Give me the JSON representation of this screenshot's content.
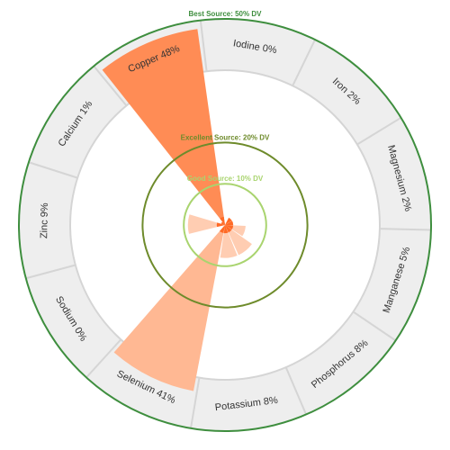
{
  "chart_data": {
    "type": "radial-bar",
    "categories": [
      "Calcium",
      "Copper",
      "Iodine",
      "Iron",
      "Magnesium",
      "Manganese",
      "Phosphorus",
      "Potassium",
      "Selenium",
      "Sodium",
      "Zinc"
    ],
    "values": [
      1,
      48,
      0,
      2,
      2,
      5,
      8,
      8,
      41,
      0,
      9
    ],
    "labels": [
      "Calcium 1%",
      "Copper 48%",
      "Iodine 0%",
      "Iron 2%",
      "Magnesium 2%",
      "Manganese 5%",
      "Phosphorus 8%",
      "Potassium 8%",
      "Selenium 41%",
      "Sodium 0%",
      "Zinc 9%"
    ],
    "unit": "% DV",
    "scale_max": 50,
    "thresholds": [
      {
        "label": "Good Source: 10% DV",
        "value": 10,
        "color": "#a9d46f"
      },
      {
        "label": "Excellent Source: 20% DV",
        "value": 20,
        "color": "#6e8b2b"
      },
      {
        "label": "Best Source: 50% DV",
        "value": 50,
        "color": "#3e8e3e"
      }
    ],
    "colors": {
      "bar_high": "#ff8c55",
      "bar_mid": "#ffb893",
      "bar_low": "#ffcdb2",
      "bar_inner": "#ff6a26",
      "outer_band": "#eeeeee",
      "separator": "#d5d5d5"
    }
  }
}
